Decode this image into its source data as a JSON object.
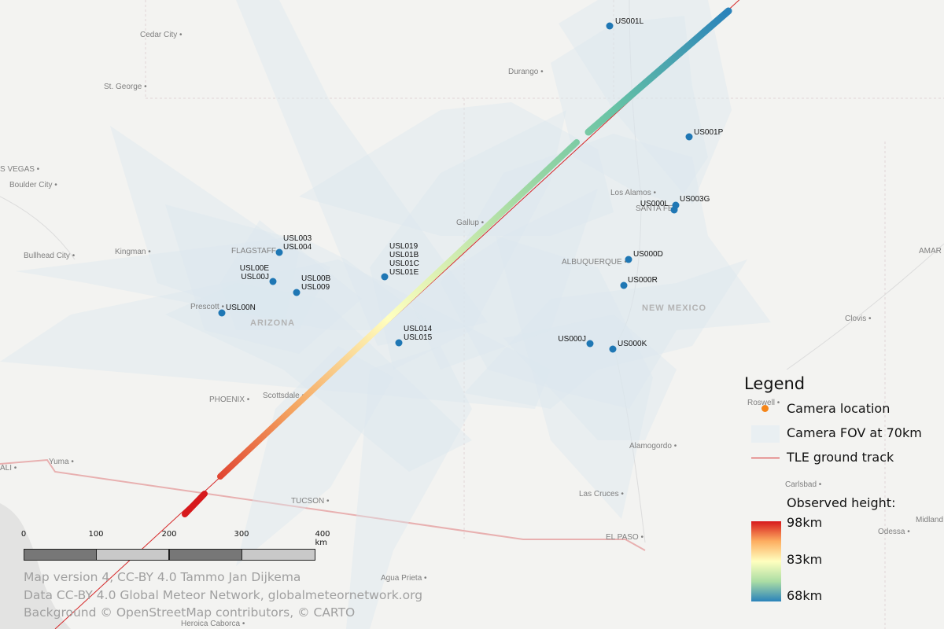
{
  "map": {
    "cities": [
      {
        "name": "Cedar City"
      },
      {
        "name": "St. George"
      },
      {
        "name": "Durango"
      },
      {
        "name": "Las Vegas"
      },
      {
        "name": "Boulder City"
      },
      {
        "name": "Bullhead City"
      },
      {
        "name": "Kingman"
      },
      {
        "name": "Flagstaff"
      },
      {
        "name": "Prescott"
      },
      {
        "name": "Phoenix"
      },
      {
        "name": "Scottsdale"
      },
      {
        "name": "Tucson"
      },
      {
        "name": "Yuma"
      },
      {
        "name": "Mexicali"
      },
      {
        "name": "Agua Prieta"
      },
      {
        "name": "Heroica Caborca"
      },
      {
        "name": "Gallup"
      },
      {
        "name": "Albuquerque"
      },
      {
        "name": "Santa Fe"
      },
      {
        "name": "Los Alamos"
      },
      {
        "name": "Roswell"
      },
      {
        "name": "Clovis"
      },
      {
        "name": "Alamogordo"
      },
      {
        "name": "Las Cruces"
      },
      {
        "name": "El Paso"
      },
      {
        "name": "Carlsbad"
      },
      {
        "name": "Midland"
      },
      {
        "name": "Odessa"
      },
      {
        "name": "Amarillo"
      }
    ],
    "regions": [
      {
        "name": "ARIZONA"
      },
      {
        "name": "NEW MEXICO"
      }
    ],
    "stations": [
      {
        "label": "US001L"
      },
      {
        "label": "US001P"
      },
      {
        "label": "USL003\nUSL004"
      },
      {
        "label": "USL019\nUSL01B\nUSL01C\nUSL01E"
      },
      {
        "label": "USL00E\nUSL00J"
      },
      {
        "label": "USL00B\nUSL009"
      },
      {
        "label": "USL00N"
      },
      {
        "label": "USL014\nUSL015"
      },
      {
        "label": "US000L"
      },
      {
        "label": "US003G"
      },
      {
        "label": "US000D"
      },
      {
        "label": "US000R"
      },
      {
        "label": "US000J"
      },
      {
        "label": "US000K"
      }
    ],
    "trajectory": {
      "height_km_start": 98,
      "height_km_end": 68
    }
  },
  "legend": {
    "title": "Legend",
    "camera_location": "Camera location",
    "camera_fov": "Camera FOV at 70km",
    "tle_track": "TLE ground track",
    "observed_height": "Observed height:",
    "colorbar_max": "98km",
    "colorbar_mid": "83km",
    "colorbar_min": "68km",
    "colors": {
      "camera": "#f58518",
      "fov": "#dbe7ee",
      "track": "#d62728"
    }
  },
  "scalebar": {
    "labels": [
      "0",
      "100",
      "200",
      "300",
      "400 km"
    ]
  },
  "credits": [
    "Map version 4,  CC-BY 4.0 Tammo Jan Dijkema",
    "Data CC-BY 4.0 Global Meteor Network, globalmeteornetwork.org",
    "Background © OpenStreetMap contributors, © CARTO"
  ]
}
